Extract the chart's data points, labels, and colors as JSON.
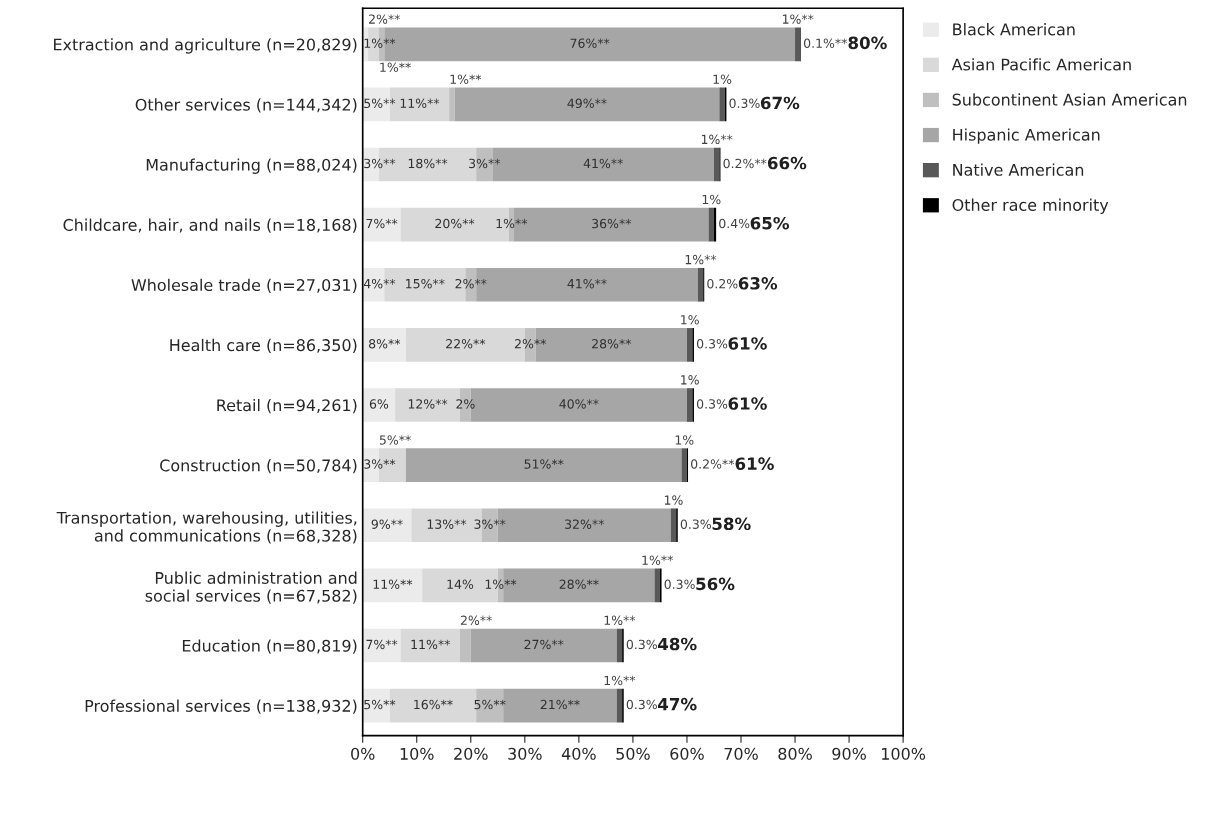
{
  "chart_data": {
    "type": "bar",
    "orientation": "horizontal",
    "stacked": true,
    "categories": [
      "Extraction and agriculture (n=20,829)",
      "Other services (n=144,342)",
      "Manufacturing (n=88,024)",
      "Childcare, hair, and nails (n=18,168)",
      "Wholesale trade (n=27,031)",
      "Health care (n=86,350)",
      "Retail (n=94,261)",
      "Construction (n=50,784)",
      "Transportation, warehousing, utilities,\nand communications (n=68,328)",
      "Public administration and\nsocial services (n=67,582)",
      "Education (n=80,819)",
      "Professional services (n=138,932)"
    ],
    "series": [
      {
        "name": "Black American",
        "color": "#ebebeb",
        "values": [
          1,
          5,
          3,
          7,
          4,
          8,
          6,
          3,
          9,
          11,
          7,
          5
        ],
        "value_labels": [
          "1%**",
          "5%**",
          "3%**",
          "7%**",
          "4%**",
          "8%**",
          "6%",
          "3%**",
          "9%**",
          "11%**",
          "7%**",
          "5%**"
        ]
      },
      {
        "name": "Asian Pacific American",
        "color": "#d9d9d9",
        "values": [
          2,
          11,
          18,
          20,
          15,
          22,
          12,
          5,
          13,
          14,
          11,
          16
        ],
        "value_labels": [
          "2%**",
          "11%**",
          "18%**",
          "20%**",
          "15%**",
          "22%**",
          "12%**",
          "5%**",
          "13%**",
          "14%",
          "11%**",
          "16%**"
        ]
      },
      {
        "name": "Subcontinent Asian American",
        "color": "#bfbfbf",
        "values": [
          1,
          1,
          3,
          1,
          2,
          2,
          2,
          null,
          3,
          1,
          2,
          5
        ],
        "value_labels": [
          "1%**",
          "1%**",
          "3%**",
          "1%**",
          "2%**",
          "2%**",
          "2%",
          null,
          "3%**",
          "1%**",
          "2%**",
          "5%**"
        ]
      },
      {
        "name": "Hispanic American",
        "color": "#a6a6a6",
        "values": [
          76,
          49,
          41,
          36,
          41,
          28,
          40,
          51,
          32,
          28,
          27,
          21
        ],
        "value_labels": [
          "76%**",
          "49%**",
          "41%**",
          "36%**",
          "41%**",
          "28%**",
          "40%**",
          "51%**",
          "32%**",
          "28%**",
          "27%**",
          "21%**"
        ]
      },
      {
        "name": "Native American",
        "color": "#595959",
        "values": [
          1,
          1,
          1,
          1,
          1,
          1,
          1,
          1,
          1,
          1,
          1,
          1
        ],
        "value_labels": [
          "1%**",
          "1%",
          "1%**",
          "1%",
          "1%**",
          "1%",
          "1%",
          "1%",
          "1%",
          "1%**",
          "1%**",
          "1%**"
        ]
      },
      {
        "name": "Other race minority",
        "color": "#000000",
        "values": [
          0.1,
          0.3,
          0.2,
          0.4,
          0.2,
          0.3,
          0.3,
          0.2,
          0.3,
          0.3,
          0.3,
          0.3
        ],
        "value_labels": [
          "0.1%**",
          "0.3%",
          "0.2%**",
          "0.4%",
          "0.2%",
          "0.3%",
          "0.3%",
          "0.2%**",
          "0.3%",
          "0.3%",
          "0.3%",
          "0.3%"
        ]
      }
    ],
    "totals": [
      "80%",
      "67%",
      "66%",
      "65%",
      "63%",
      "61%",
      "61%",
      "61%",
      "58%",
      "56%",
      "48%",
      "47%"
    ],
    "xlim": [
      0,
      100
    ],
    "xticks": [
      {
        "value": 0,
        "label": "0%"
      },
      {
        "value": 10,
        "label": "10%"
      },
      {
        "value": 20,
        "label": "20%"
      },
      {
        "value": 30,
        "label": "30%"
      },
      {
        "value": 40,
        "label": "40%"
      },
      {
        "value": 50,
        "label": "50%"
      },
      {
        "value": 60,
        "label": "60%"
      },
      {
        "value": 70,
        "label": "70%"
      },
      {
        "value": 80,
        "label": "80%"
      },
      {
        "value": 90,
        "label": "90%"
      },
      {
        "value": 100,
        "label": "100%"
      }
    ],
    "grid": false,
    "legend": "top right"
  }
}
